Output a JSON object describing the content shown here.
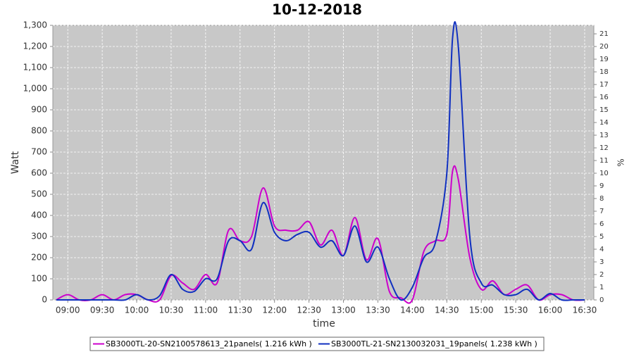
{
  "chart_data": {
    "type": "line",
    "title": "10-12-2018",
    "xlabel": "time",
    "ylabel": "Watt",
    "y2label": "%",
    "x": [
      "08:50",
      "09:00",
      "09:10",
      "09:20",
      "09:30",
      "09:40",
      "09:50",
      "10:00",
      "10:10",
      "10:20",
      "10:30",
      "10:40",
      "10:50",
      "11:00",
      "11:10",
      "11:20",
      "11:30",
      "11:40",
      "11:50",
      "12:00",
      "12:10",
      "12:20",
      "12:30",
      "12:40",
      "12:50",
      "13:00",
      "13:10",
      "13:20",
      "13:30",
      "13:40",
      "13:50",
      "14:00",
      "14:10",
      "14:20",
      "14:30",
      "14:35",
      "14:40",
      "14:50",
      "15:00",
      "15:10",
      "15:20",
      "15:30",
      "15:40",
      "15:50",
      "16:00",
      "16:10",
      "16:20",
      "16:30"
    ],
    "series": [
      {
        "name": "SB3000TL-20-SN2100578613_21panels( 1.216 kWh )",
        "color": "#cc00cc",
        "values": [
          0,
          25,
          0,
          0,
          25,
          0,
          25,
          25,
          0,
          0,
          115,
          80,
          50,
          120,
          80,
          330,
          280,
          300,
          530,
          350,
          330,
          330,
          370,
          260,
          330,
          210,
          390,
          190,
          290,
          40,
          10,
          0,
          230,
          280,
          310,
          610,
          570,
          200,
          50,
          90,
          25,
          50,
          70,
          0,
          25,
          25,
          0,
          0
        ]
      },
      {
        "name": "SB3000TL-21-SN2130032031_19panels( 1.238 kWh )",
        "color": "#1030c0",
        "values": [
          0,
          0,
          0,
          0,
          0,
          0,
          0,
          25,
          0,
          20,
          120,
          50,
          40,
          100,
          100,
          280,
          280,
          240,
          460,
          320,
          280,
          310,
          320,
          250,
          280,
          210,
          350,
          180,
          250,
          100,
          0,
          60,
          200,
          270,
          600,
          1240,
          1200,
          300,
          80,
          70,
          25,
          25,
          50,
          0,
          30,
          0,
          0,
          0
        ]
      }
    ],
    "xlim": [
      "08:47",
      "16:38"
    ],
    "xticks": [
      "09:00",
      "09:30",
      "10:00",
      "10:30",
      "11:00",
      "11:30",
      "12:00",
      "12:30",
      "13:00",
      "13:30",
      "14:00",
      "14:30",
      "15:00",
      "15:30",
      "16:00",
      "16:30"
    ],
    "ylim": [
      0,
      1300
    ],
    "yticks": [
      0,
      100,
      200,
      300,
      400,
      500,
      600,
      700,
      800,
      900,
      {
        "value": 1000,
        "label": "1,000"
      },
      {
        "value": 1100,
        "label": "1,100"
      },
      {
        "value": 1200,
        "label": "1,200"
      },
      {
        "value": 1300,
        "label": "1,300"
      }
    ],
    "y2lim": [
      0,
      21.67
    ],
    "y2ticks": [
      0,
      1,
      2,
      3,
      4,
      5,
      6,
      7,
      8,
      9,
      10,
      11,
      12,
      13,
      14,
      15,
      16,
      17,
      18,
      19,
      20,
      21
    ],
    "grid": true
  }
}
